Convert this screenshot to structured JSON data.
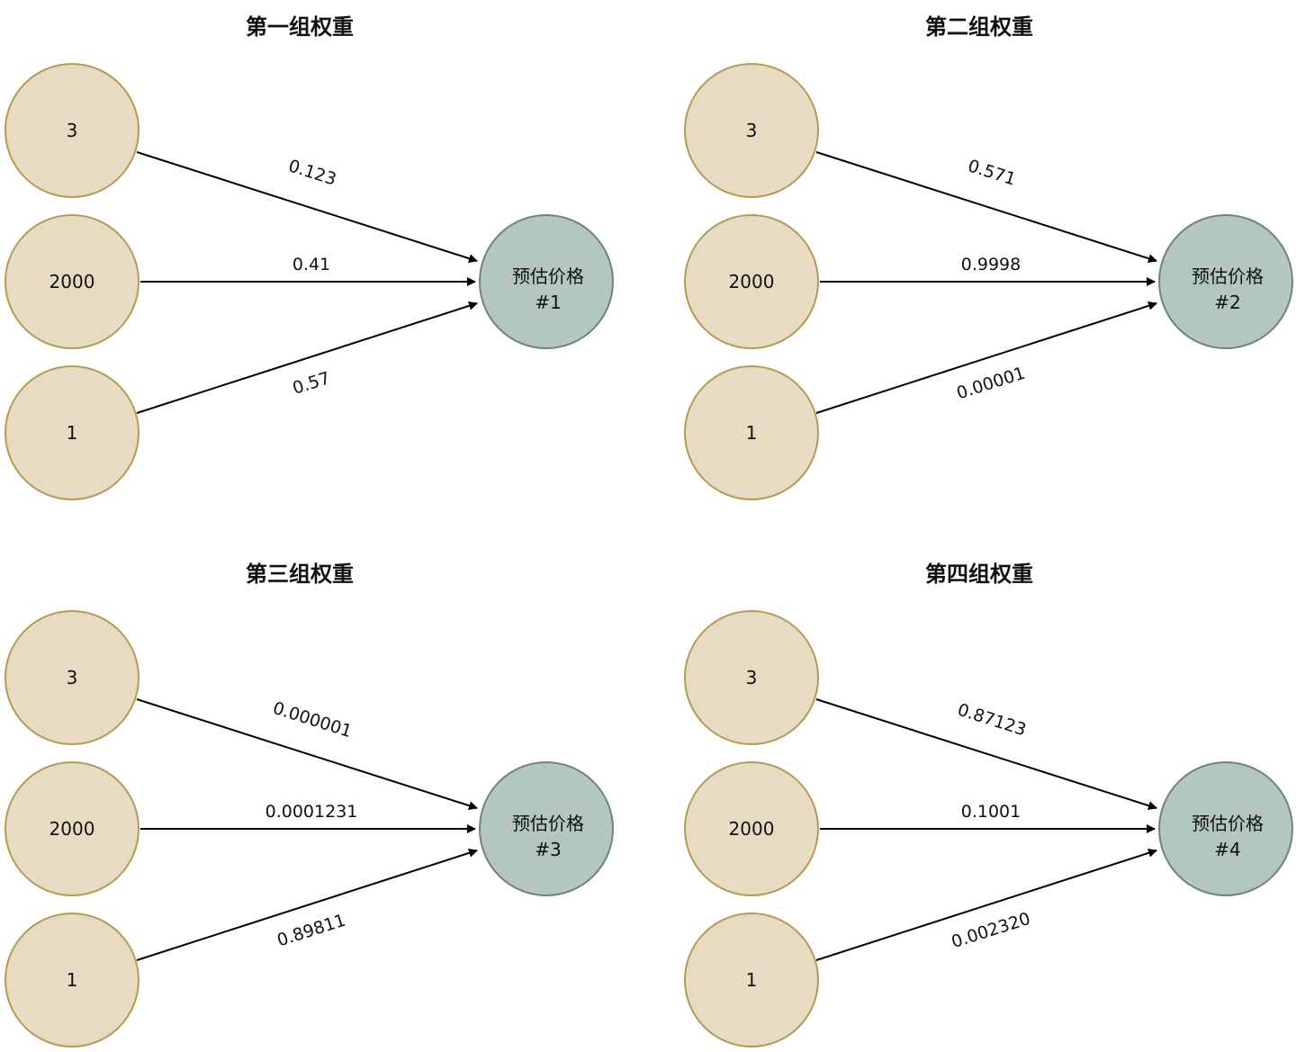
{
  "colors": {
    "input_fill": "#e7dcc3",
    "input_stroke": "#b39b54",
    "output_fill": "#b3c7bf",
    "output_stroke": "#6f837c",
    "edge": "#000000"
  },
  "panels": [
    {
      "title": "第一组权重",
      "inputs": [
        "3",
        "2000",
        "1"
      ],
      "weights": [
        "0.123",
        "0.41",
        "0.57"
      ],
      "output": [
        "预估价格",
        "#1"
      ]
    },
    {
      "title": "第二组权重",
      "inputs": [
        "3",
        "2000",
        "1"
      ],
      "weights": [
        "0.571",
        "0.9998",
        "0.00001"
      ],
      "output": [
        "预估价格",
        "#2"
      ]
    },
    {
      "title": "第三组权重",
      "inputs": [
        "3",
        "2000",
        "1"
      ],
      "weights": [
        "0.000001",
        "0.0001231",
        "0.89811"
      ],
      "output": [
        "预估价格",
        "#3"
      ]
    },
    {
      "title": "第四组权重",
      "inputs": [
        "3",
        "2000",
        "1"
      ],
      "weights": [
        "0.87123",
        "0.1001",
        "0.002320"
      ],
      "output": [
        "预估价格",
        "#4"
      ]
    }
  ]
}
